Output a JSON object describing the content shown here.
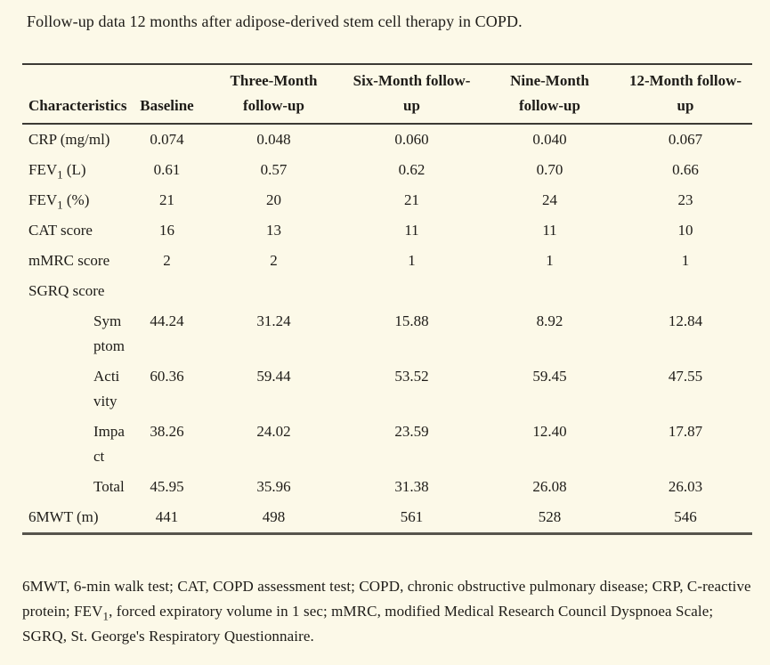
{
  "page": {
    "background_color": "#fcf9e8",
    "text_color": "#1e1c18",
    "rule_color": "#3c3a34"
  },
  "title": "Follow-up data 12 months after adipose-derived stem cell therapy in COPD.",
  "table": {
    "columns": [
      {
        "label": "Characteristics"
      },
      {
        "label": "Baseline"
      },
      {
        "label": "Three-Month\nfollow-up"
      },
      {
        "label": "Six-Month follow-\nup"
      },
      {
        "label": "Nine-Month\nfollow-up"
      },
      {
        "label": "12-Month follow-\nup"
      }
    ],
    "rows": [
      {
        "label": "CRP (mg/ml)",
        "values": [
          "0.074",
          "0.048",
          "0.060",
          "0.040",
          "0.067"
        ]
      },
      {
        "label": "FEV",
        "label_sub": "1",
        "label_post": " (L)",
        "values": [
          "0.61",
          "0.57",
          "0.62",
          "0.70",
          "0.66"
        ]
      },
      {
        "label": "FEV",
        "label_sub": "1",
        "label_post": " (%)",
        "values": [
          "21",
          "20",
          "21",
          "24",
          "23"
        ]
      },
      {
        "label": "CAT score",
        "values": [
          "16",
          "13",
          "11",
          "11",
          "10"
        ]
      },
      {
        "label": "mMRC score",
        "values": [
          "2",
          "2",
          "1",
          "1",
          "1"
        ]
      },
      {
        "label": "SGRQ score",
        "values": [
          "",
          "",
          "",
          "",
          ""
        ]
      },
      {
        "label": "Sym\nptom",
        "indent": true,
        "values": [
          "44.24",
          "31.24",
          "15.88",
          "8.92",
          "12.84"
        ]
      },
      {
        "label": "Acti\nvity",
        "indent": true,
        "values": [
          "60.36",
          "59.44",
          "53.52",
          "59.45",
          "47.55"
        ]
      },
      {
        "label": "Impa\nct",
        "indent": true,
        "values": [
          "38.26",
          "24.02",
          "23.59",
          "12.40",
          "17.87"
        ]
      },
      {
        "label": "Total",
        "indent": true,
        "values": [
          "45.95",
          "35.96",
          "31.38",
          "26.08",
          "26.03"
        ]
      },
      {
        "label": "6MWT (m)",
        "values": [
          "441",
          "498",
          "561",
          "528",
          "546"
        ]
      }
    ]
  },
  "footnote": {
    "part1": "6MWT, 6-min walk test; CAT, COPD assessment test; COPD, chronic obstructive pulmonary disease; CRP, C-reactive protein; FEV",
    "sub": "1",
    "part2": ", forced expiratory volume in 1 sec; mMRC, modified Medical Research Council Dyspnoea Scale; SGRQ, St. George's Respiratory Questionnaire."
  }
}
